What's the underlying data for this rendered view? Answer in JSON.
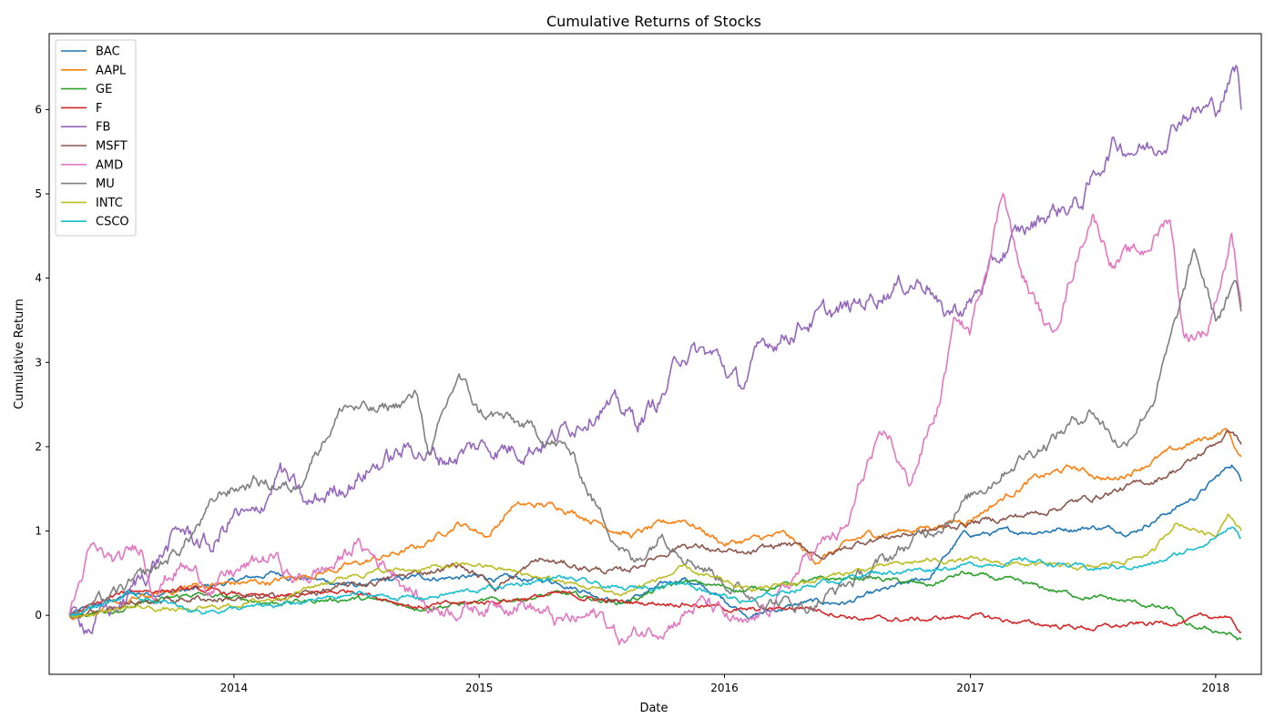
{
  "chart_data": {
    "type": "line",
    "title": "Cumulative Returns of Stocks",
    "xlabel": "Date",
    "ylabel": "Cumulative Return",
    "x_start": "2013-05-01",
    "x_end": "2018-02-08",
    "xlim": [
      "2013-04-01",
      "2018-03-10"
    ],
    "ylim": [
      -0.7,
      6.9
    ],
    "x_ticks": [
      "2014",
      "2015",
      "2016",
      "2017",
      "2018"
    ],
    "y_ticks": [
      0,
      1,
      2,
      3,
      4,
      5,
      6
    ],
    "grid": false,
    "legend_position": "top-left",
    "series": [
      {
        "name": "BAC",
        "color": "#1f77b4",
        "points": [
          [
            "2013-05-01",
            0.0
          ],
          [
            "2013-08-01",
            0.25
          ],
          [
            "2013-11-01",
            0.3
          ],
          [
            "2014-03-01",
            0.5
          ],
          [
            "2014-07-01",
            0.35
          ],
          [
            "2014-10-01",
            0.45
          ],
          [
            "2015-01-01",
            0.45
          ],
          [
            "2015-05-01",
            0.4
          ],
          [
            "2015-08-01",
            0.15
          ],
          [
            "2015-11-01",
            0.45
          ],
          [
            "2016-02-10",
            0.0
          ],
          [
            "2016-05-01",
            0.15
          ],
          [
            "2016-07-01",
            0.15
          ],
          [
            "2016-11-01",
            0.45
          ],
          [
            "2016-12-20",
            0.95
          ],
          [
            "2017-04-01",
            1.0
          ],
          [
            "2017-07-01",
            1.05
          ],
          [
            "2017-09-01",
            1.0
          ],
          [
            "2017-12-01",
            1.4
          ],
          [
            "2018-01-26",
            1.8
          ],
          [
            "2018-02-08",
            1.6
          ]
        ]
      },
      {
        "name": "AAPL",
        "color": "#ff7f0e",
        "points": [
          [
            "2013-05-01",
            0.0
          ],
          [
            "2013-07-01",
            0.1
          ],
          [
            "2013-11-01",
            0.35
          ],
          [
            "2014-03-01",
            0.4
          ],
          [
            "2014-07-01",
            0.6
          ],
          [
            "2014-10-01",
            0.8
          ],
          [
            "2014-12-01",
            1.1
          ],
          [
            "2015-01-15",
            0.95
          ],
          [
            "2015-02-20",
            1.3
          ],
          [
            "2015-05-01",
            1.3
          ],
          [
            "2015-08-15",
            0.95
          ],
          [
            "2015-11-01",
            1.15
          ],
          [
            "2016-01-01",
            0.85
          ],
          [
            "2016-04-01",
            0.95
          ],
          [
            "2016-05-15",
            0.65
          ],
          [
            "2016-08-01",
            0.95
          ],
          [
            "2016-11-01",
            1.05
          ],
          [
            "2017-01-01",
            1.15
          ],
          [
            "2017-04-01",
            1.6
          ],
          [
            "2017-06-01",
            1.75
          ],
          [
            "2017-08-01",
            1.6
          ],
          [
            "2017-10-01",
            1.85
          ],
          [
            "2017-12-01",
            2.05
          ],
          [
            "2018-01-18",
            2.2
          ],
          [
            "2018-02-08",
            1.85
          ]
        ]
      },
      {
        "name": "GE",
        "color": "#2ca02c",
        "points": [
          [
            "2013-05-01",
            0.0
          ],
          [
            "2013-08-01",
            0.1
          ],
          [
            "2013-11-01",
            0.25
          ],
          [
            "2014-03-01",
            0.15
          ],
          [
            "2014-07-01",
            0.2
          ],
          [
            "2014-10-01",
            0.1
          ],
          [
            "2015-01-01",
            0.15
          ],
          [
            "2015-05-01",
            0.25
          ],
          [
            "2015-08-01",
            0.15
          ],
          [
            "2015-11-01",
            0.4
          ],
          [
            "2016-02-01",
            0.3
          ],
          [
            "2016-05-01",
            0.4
          ],
          [
            "2016-08-01",
            0.45
          ],
          [
            "2016-11-01",
            0.35
          ],
          [
            "2016-12-20",
            0.5
          ],
          [
            "2017-03-01",
            0.4
          ],
          [
            "2017-06-01",
            0.25
          ],
          [
            "2017-09-01",
            0.15
          ],
          [
            "2017-11-01",
            0.05
          ],
          [
            "2017-11-20",
            -0.15
          ],
          [
            "2018-01-15",
            -0.2
          ],
          [
            "2018-02-08",
            -0.3
          ]
        ]
      },
      {
        "name": "F",
        "color": "#d62728",
        "points": [
          [
            "2013-05-01",
            0.0
          ],
          [
            "2013-08-01",
            0.3
          ],
          [
            "2013-11-01",
            0.3
          ],
          [
            "2014-03-01",
            0.2
          ],
          [
            "2014-07-01",
            0.3
          ],
          [
            "2014-10-01",
            0.1
          ],
          [
            "2015-01-01",
            0.15
          ],
          [
            "2015-05-01",
            0.25
          ],
          [
            "2015-08-01",
            0.15
          ],
          [
            "2015-11-01",
            0.15
          ],
          [
            "2016-02-01",
            0.05
          ],
          [
            "2016-05-01",
            0.1
          ],
          [
            "2016-08-01",
            -0.05
          ],
          [
            "2016-11-01",
            -0.05
          ],
          [
            "2017-01-01",
            0.0
          ],
          [
            "2017-04-01",
            -0.1
          ],
          [
            "2017-07-01",
            -0.15
          ],
          [
            "2017-10-01",
            -0.1
          ],
          [
            "2017-12-01",
            -0.05
          ],
          [
            "2018-01-15",
            0.0
          ],
          [
            "2018-02-08",
            -0.2
          ]
        ]
      },
      {
        "name": "FB",
        "color": "#9467bd",
        "points": [
          [
            "2013-05-01",
            0.0
          ],
          [
            "2013-06-01",
            -0.1
          ],
          [
            "2013-07-20",
            0.15
          ],
          [
            "2013-09-01",
            0.6
          ],
          [
            "2013-10-15",
            1.0
          ],
          [
            "2013-12-01",
            0.8
          ],
          [
            "2014-01-01",
            1.2
          ],
          [
            "2014-02-01",
            1.1
          ],
          [
            "2014-03-10",
            1.75
          ],
          [
            "2014-04-20",
            1.25
          ],
          [
            "2014-06-01",
            1.5
          ],
          [
            "2014-08-01",
            1.8
          ],
          [
            "2014-10-01",
            2.0
          ],
          [
            "2014-11-01",
            1.85
          ],
          [
            "2015-01-01",
            2.0
          ],
          [
            "2015-03-01",
            2.0
          ],
          [
            "2015-05-01",
            2.15
          ],
          [
            "2015-07-01",
            2.55
          ],
          [
            "2015-08-25",
            2.3
          ],
          [
            "2015-10-01",
            2.6
          ],
          [
            "2015-11-01",
            3.15
          ],
          [
            "2015-12-20",
            3.05
          ],
          [
            "2016-01-25",
            2.7
          ],
          [
            "2016-03-01",
            3.2
          ],
          [
            "2016-05-01",
            3.5
          ],
          [
            "2016-07-01",
            3.6
          ],
          [
            "2016-09-01",
            3.9
          ],
          [
            "2016-11-01",
            4.0
          ],
          [
            "2016-11-20",
            3.55
          ],
          [
            "2017-01-01",
            3.7
          ],
          [
            "2017-03-01",
            4.4
          ],
          [
            "2017-05-01",
            4.8
          ],
          [
            "2017-06-15",
            4.9
          ],
          [
            "2017-08-01",
            5.6
          ],
          [
            "2017-10-01",
            5.55
          ],
          [
            "2017-11-15",
            6.0
          ],
          [
            "2018-01-01",
            6.0
          ],
          [
            "2018-02-01",
            6.5
          ],
          [
            "2018-02-08",
            6.0
          ]
        ]
      },
      {
        "name": "MSFT",
        "color": "#8c564b",
        "points": [
          [
            "2013-05-01",
            0.0
          ],
          [
            "2013-08-01",
            0.15
          ],
          [
            "2013-11-01",
            0.2
          ],
          [
            "2014-03-01",
            0.2
          ],
          [
            "2014-07-01",
            0.35
          ],
          [
            "2014-10-01",
            0.5
          ],
          [
            "2014-12-01",
            0.6
          ],
          [
            "2015-01-25",
            0.35
          ],
          [
            "2015-04-01",
            0.65
          ],
          [
            "2015-08-01",
            0.5
          ],
          [
            "2015-11-01",
            0.85
          ],
          [
            "2016-02-01",
            0.7
          ],
          [
            "2016-04-01",
            0.85
          ],
          [
            "2016-06-01",
            0.7
          ],
          [
            "2016-08-01",
            0.9
          ],
          [
            "2016-11-01",
            1.0
          ],
          [
            "2017-01-01",
            1.1
          ],
          [
            "2017-04-01",
            1.2
          ],
          [
            "2017-07-01",
            1.4
          ],
          [
            "2017-10-01",
            1.6
          ],
          [
            "2017-12-01",
            1.85
          ],
          [
            "2018-01-25",
            2.2
          ],
          [
            "2018-02-08",
            2.05
          ]
        ]
      },
      {
        "name": "AMD",
        "color": "#e377c2",
        "points": [
          [
            "2013-05-01",
            0.0
          ],
          [
            "2013-06-01",
            0.75
          ],
          [
            "2013-07-15",
            0.6
          ],
          [
            "2013-08-15",
            0.85
          ],
          [
            "2013-09-01",
            0.35
          ],
          [
            "2013-10-15",
            0.6
          ],
          [
            "2013-12-01",
            0.35
          ],
          [
            "2014-01-01",
            0.5
          ],
          [
            "2014-03-01",
            0.7
          ],
          [
            "2014-04-01",
            0.4
          ],
          [
            "2014-06-01",
            0.6
          ],
          [
            "2014-07-01",
            0.85
          ],
          [
            "2014-09-01",
            0.5
          ],
          [
            "2014-10-15",
            0.1
          ],
          [
            "2015-01-01",
            0.1
          ],
          [
            "2015-03-01",
            0.2
          ],
          [
            "2015-05-01",
            -0.1
          ],
          [
            "2015-07-01",
            0.0
          ],
          [
            "2015-08-01",
            -0.3
          ],
          [
            "2015-10-01",
            -0.1
          ],
          [
            "2015-12-01",
            0.15
          ],
          [
            "2016-02-01",
            -0.2
          ],
          [
            "2016-04-01",
            0.3
          ],
          [
            "2016-05-15",
            0.8
          ],
          [
            "2016-07-01",
            1.0
          ],
          [
            "2016-08-01",
            1.8
          ],
          [
            "2016-09-01",
            2.1
          ],
          [
            "2016-10-01",
            1.55
          ],
          [
            "2016-11-15",
            2.5
          ],
          [
            "2016-12-10",
            3.5
          ],
          [
            "2017-01-01",
            3.35
          ],
          [
            "2017-02-20",
            5.1
          ],
          [
            "2017-03-15",
            4.1
          ],
          [
            "2017-05-01",
            3.3
          ],
          [
            "2017-07-01",
            4.8
          ],
          [
            "2017-08-01",
            4.2
          ],
          [
            "2017-09-15",
            4.3
          ],
          [
            "2017-10-25",
            4.75
          ],
          [
            "2017-11-15",
            3.3
          ],
          [
            "2017-12-20",
            3.4
          ],
          [
            "2018-01-25",
            4.5
          ],
          [
            "2018-02-08",
            3.75
          ]
        ]
      },
      {
        "name": "MU",
        "color": "#7f7f7f",
        "points": [
          [
            "2013-05-01",
            0.0
          ],
          [
            "2013-07-01",
            0.2
          ],
          [
            "2013-09-01",
            0.5
          ],
          [
            "2013-10-15",
            0.8
          ],
          [
            "2013-12-15",
            1.45
          ],
          [
            "2014-02-01",
            1.6
          ],
          [
            "2014-04-01",
            1.5
          ],
          [
            "2014-05-01",
            1.95
          ],
          [
            "2014-06-15",
            2.5
          ],
          [
            "2014-08-01",
            2.4
          ],
          [
            "2014-10-01",
            2.6
          ],
          [
            "2014-10-20",
            1.9
          ],
          [
            "2014-12-01",
            2.85
          ],
          [
            "2015-01-01",
            2.4
          ],
          [
            "2015-02-01",
            2.35
          ],
          [
            "2015-04-01",
            2.15
          ],
          [
            "2015-05-15",
            1.95
          ],
          [
            "2015-07-01",
            1.2
          ],
          [
            "2015-08-20",
            0.6
          ],
          [
            "2015-10-01",
            1.0
          ],
          [
            "2015-12-01",
            0.6
          ],
          [
            "2016-02-01",
            0.25
          ],
          [
            "2016-05-01",
            0.1
          ],
          [
            "2016-08-01",
            0.5
          ],
          [
            "2016-11-01",
            1.0
          ],
          [
            "2017-01-01",
            1.4
          ],
          [
            "2017-03-01",
            1.8
          ],
          [
            "2017-05-01",
            2.1
          ],
          [
            "2017-07-01",
            2.45
          ],
          [
            "2017-08-15",
            2.0
          ],
          [
            "2017-10-01",
            2.6
          ],
          [
            "2017-11-01",
            3.4
          ],
          [
            "2017-12-01",
            4.3
          ],
          [
            "2018-01-01",
            3.5
          ],
          [
            "2018-02-01",
            3.9
          ],
          [
            "2018-02-08",
            3.6
          ]
        ]
      },
      {
        "name": "INTC",
        "color": "#bcbd22",
        "points": [
          [
            "2013-05-01",
            0.0
          ],
          [
            "2013-08-01",
            0.1
          ],
          [
            "2013-11-01",
            0.05
          ],
          [
            "2014-03-01",
            0.2
          ],
          [
            "2014-07-01",
            0.5
          ],
          [
            "2014-10-01",
            0.55
          ],
          [
            "2015-01-01",
            0.6
          ],
          [
            "2015-05-01",
            0.4
          ],
          [
            "2015-08-01",
            0.25
          ],
          [
            "2015-11-01",
            0.55
          ],
          [
            "2016-02-01",
            0.3
          ],
          [
            "2016-05-01",
            0.4
          ],
          [
            "2016-08-01",
            0.55
          ],
          [
            "2016-11-01",
            0.65
          ],
          [
            "2017-01-01",
            0.65
          ],
          [
            "2017-04-01",
            0.6
          ],
          [
            "2017-07-01",
            0.55
          ],
          [
            "2017-10-01",
            0.75
          ],
          [
            "2017-11-01",
            1.1
          ],
          [
            "2018-01-01",
            0.95
          ],
          [
            "2018-01-20",
            1.25
          ],
          [
            "2018-02-08",
            1.0
          ]
        ]
      },
      {
        "name": "CSCO",
        "color": "#17becf",
        "points": [
          [
            "2013-05-01",
            0.0
          ],
          [
            "2013-08-01",
            0.25
          ],
          [
            "2013-11-01",
            0.05
          ],
          [
            "2014-03-01",
            0.1
          ],
          [
            "2014-07-01",
            0.25
          ],
          [
            "2014-10-01",
            0.2
          ],
          [
            "2015-01-01",
            0.3
          ],
          [
            "2015-05-01",
            0.45
          ],
          [
            "2015-08-01",
            0.3
          ],
          [
            "2015-11-01",
            0.4
          ],
          [
            "2016-02-01",
            0.15
          ],
          [
            "2016-05-01",
            0.35
          ],
          [
            "2016-08-01",
            0.5
          ],
          [
            "2016-11-01",
            0.55
          ],
          [
            "2017-01-01",
            0.6
          ],
          [
            "2017-04-01",
            0.65
          ],
          [
            "2017-07-01",
            0.55
          ],
          [
            "2017-10-01",
            0.6
          ],
          [
            "2017-12-01",
            0.8
          ],
          [
            "2018-01-25",
            1.05
          ],
          [
            "2018-02-08",
            0.9
          ]
        ]
      }
    ]
  }
}
